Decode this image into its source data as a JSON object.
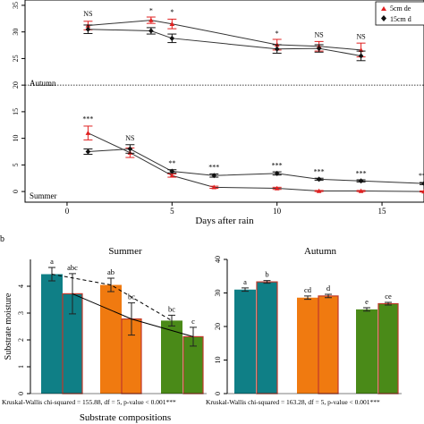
{
  "figure": {
    "panel_label": "b",
    "x_title": "Substrate compositions"
  },
  "chart_data": [
    {
      "type": "line",
      "id": "top",
      "xlabel": "Days after rain",
      "xlim": [
        -2,
        17
      ],
      "ylim": [
        -2,
        36
      ],
      "xticks": [
        "0",
        "5",
        "10",
        "15"
      ],
      "xtick_values": [
        0,
        5,
        10,
        15
      ],
      "yticks": [
        "0",
        "5",
        "10",
        "15",
        "20",
        "25",
        "30",
        "35"
      ],
      "ytick_values": [
        0,
        5,
        10,
        15,
        20,
        25,
        30,
        35
      ],
      "hline_y": 20,
      "region_labels": {
        "upper": "Autumn",
        "lower": "Summer"
      },
      "legend": [
        "5cm de",
        "15cm d"
      ],
      "legend_position": "top-right",
      "series": [
        {
          "name": "5cm de",
          "color": "#e02020",
          "marker": "triangle",
          "line": "solid",
          "points": [
            [
              1,
              31.2,
              0.8
            ],
            [
              4,
              32.2,
              0.6
            ],
            [
              5,
              31.5,
              0.9
            ],
            [
              10,
              27.6,
              1.0
            ],
            [
              12,
              27.3,
              0.9
            ],
            [
              14,
              26.6,
              1.3
            ]
          ]
        },
        {
          "name": "15cm d",
          "color": "#111111",
          "marker": "diamond",
          "line": "solid",
          "points": [
            [
              1,
              30.5,
              0.8
            ],
            [
              4,
              30.2,
              0.6
            ],
            [
              5,
              28.8,
              0.8
            ],
            [
              10,
              26.8,
              0.8
            ],
            [
              12,
              26.9,
              0.7
            ],
            [
              14,
              25.5,
              0.9
            ]
          ]
        },
        {
          "name": "5cm de",
          "color": "#e02020",
          "marker": "triangle",
          "line": "solid",
          "points": [
            [
              1,
              11.0,
              1.3
            ],
            [
              3,
              7.3,
              0.9
            ],
            [
              5,
              3.0,
              0.3
            ],
            [
              7,
              0.8,
              0.2
            ],
            [
              10,
              0.6,
              0.2
            ],
            [
              12,
              0.1,
              0.1
            ],
            [
              14,
              0.1,
              0.1
            ],
            [
              17,
              0.0,
              0.1
            ]
          ]
        },
        {
          "name": "15cm d",
          "color": "#111111",
          "marker": "diamond",
          "line": "solid",
          "points": [
            [
              1,
              7.5,
              0.5
            ],
            [
              3,
              8.0,
              0.8
            ],
            [
              5,
              3.8,
              0.3
            ],
            [
              7,
              3.0,
              0.3
            ],
            [
              10,
              3.4,
              0.3
            ],
            [
              12,
              2.3,
              0.2
            ],
            [
              14,
              2.0,
              0.2
            ],
            [
              17,
              1.5,
              0.2
            ]
          ]
        }
      ],
      "annotations": [
        {
          "x": 1,
          "y": 33.0,
          "text": "NS"
        },
        {
          "x": 4,
          "y": 33.6,
          "text": "*"
        },
        {
          "x": 5,
          "y": 33.3,
          "text": "*"
        },
        {
          "x": 10,
          "y": 29.3,
          "text": "*"
        },
        {
          "x": 12,
          "y": 29.0,
          "text": "NS"
        },
        {
          "x": 14,
          "y": 28.7,
          "text": "NS"
        },
        {
          "x": 1,
          "y": 13.2,
          "text": "***"
        },
        {
          "x": 3,
          "y": 9.6,
          "text": "NS"
        },
        {
          "x": 5,
          "y": 4.9,
          "text": "**"
        },
        {
          "x": 7,
          "y": 4.1,
          "text": "***"
        },
        {
          "x": 10,
          "y": 4.5,
          "text": "***"
        },
        {
          "x": 12,
          "y": 3.3,
          "text": "***"
        },
        {
          "x": 14,
          "y": 3.0,
          "text": "***"
        },
        {
          "x": 17,
          "y": 2.5,
          "text": "***"
        }
      ]
    },
    {
      "type": "bar",
      "id": "summer",
      "title": "Summer",
      "ylabel": "Substrate moisture",
      "ylim": [
        0,
        5
      ],
      "yticks": [
        "0",
        "1",
        "2",
        "3",
        "4"
      ],
      "ytick_values": [
        0,
        1,
        2,
        3,
        4
      ],
      "values": [
        4.45,
        3.72,
        4.05,
        2.78,
        2.72,
        2.12
      ],
      "errors": [
        0.25,
        0.75,
        0.25,
        0.6,
        0.2,
        0.35
      ],
      "colors": [
        "#0f7f86",
        "#0f7f86",
        "#f07a10",
        "#f07a10",
        "#4a8a18",
        "#4a8a18"
      ],
      "outline": [
        false,
        true,
        false,
        true,
        false,
        true
      ],
      "letters": [
        "a",
        "abc",
        "ab",
        "bc",
        "bc",
        "c"
      ],
      "trend_dashed": [
        0,
        2,
        4
      ],
      "trend_solid": [
        1,
        3,
        5
      ],
      "stat_text": "Kruskal-Wallis chi-squared = 155.88, df = 5, p-value < 0.001***"
    },
    {
      "type": "bar",
      "id": "autumn",
      "title": "Autumn",
      "ylim": [
        0,
        40
      ],
      "yticks": [
        "0",
        "10",
        "20",
        "30",
        "40"
      ],
      "ytick_values": [
        0,
        10,
        20,
        30,
        40
      ],
      "values": [
        31.0,
        33.3,
        28.6,
        29.1,
        25.1,
        26.8
      ],
      "errors": [
        0.5,
        0.4,
        0.5,
        0.5,
        0.5,
        0.4
      ],
      "colors": [
        "#0f7f86",
        "#0f7f86",
        "#f07a10",
        "#f07a10",
        "#4a8a18",
        "#4a8a18"
      ],
      "outline": [
        false,
        true,
        false,
        true,
        false,
        true
      ],
      "letters": [
        "a",
        "b",
        "cd",
        "d",
        "e",
        "ce"
      ],
      "stat_text": "Kruskal-Wallis chi-squared = 163.28, df = 5, p-value < 0.001***"
    }
  ]
}
